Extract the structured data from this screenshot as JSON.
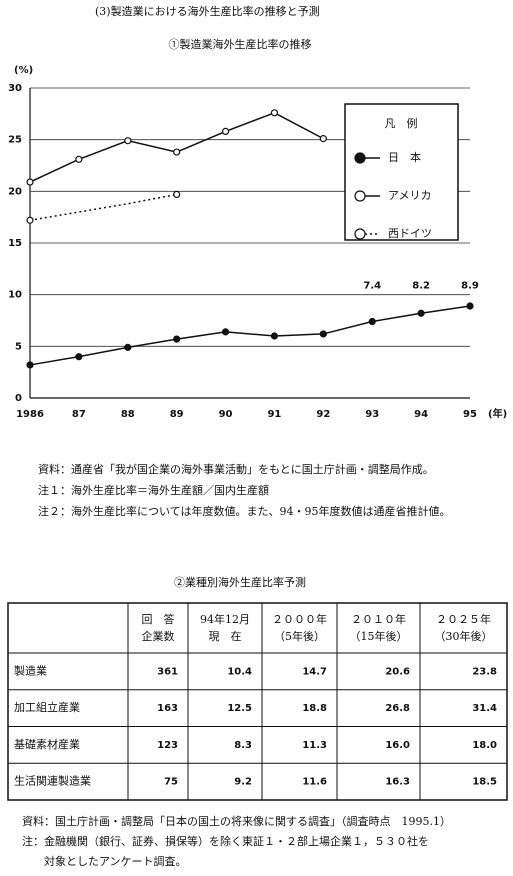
{
  "header": {
    "title": "(3)製造業における海外生産比率の推移と予測"
  },
  "chart_data": {
    "type": "line",
    "title": "①製造業海外生産比率の推移",
    "y_unit": "(%)",
    "x_unit": "(年)",
    "categories": [
      "1986",
      "87",
      "88",
      "89",
      "90",
      "91",
      "92",
      "93",
      "94",
      "95"
    ],
    "ylim": [
      0,
      30
    ],
    "yticks": [
      0,
      5,
      10,
      15,
      20,
      25,
      30
    ],
    "grid": true,
    "legend_title": "凡　例",
    "legend": "upper right",
    "series": [
      {
        "name": "日　本",
        "color": "#111111",
        "line_style": "solid",
        "marker_fill": true,
        "values": [
          3.2,
          4.0,
          4.9,
          5.7,
          6.4,
          6.0,
          6.2,
          7.4,
          8.2,
          8.9
        ],
        "value_labels": [
          null,
          null,
          null,
          null,
          null,
          null,
          null,
          "7.4",
          "8.2",
          "8.9"
        ]
      },
      {
        "name": "アメリカ",
        "color": "#111111",
        "line_style": "solid",
        "marker_fill": false,
        "values": [
          20.9,
          23.1,
          24.9,
          23.8,
          25.8,
          27.6,
          25.1,
          null,
          null,
          null
        ]
      },
      {
        "name": "西ドイツ",
        "color": "#111111",
        "line_style": "dotted",
        "marker_fill": false,
        "values": [
          17.2,
          18.0,
          18.8,
          19.7,
          null,
          null,
          null,
          null,
          null,
          null
        ]
      }
    ]
  },
  "notes": [
    "資料：通産省「我が国企業の海外事業活動」をもとに国土庁計画・調整局作成。",
    "注１：海外生産比率＝海外生産額／国内生産額",
    "注２：海外生産比率については年度数値。また、94・95年度数値は通産省推計値。"
  ],
  "table": {
    "title": "②業種別海外生産比率予測",
    "columns": [
      [
        "回　答",
        "企業数"
      ],
      [
        "94年12月",
        "現　在"
      ],
      [
        "２０００年",
        "（5年後）"
      ],
      [
        "２０１０年",
        "（15年後）"
      ],
      [
        "２０２５年",
        "（30年後）"
      ]
    ],
    "rows": [
      [
        "製造業",
        "361",
        "10.4",
        "14.7",
        "20.6",
        "23.8"
      ],
      [
        "加工組立産業",
        "163",
        "12.5",
        "18.8",
        "26.8",
        "31.4"
      ],
      [
        "基礎素材産業",
        "123",
        "8.3",
        "11.3",
        "16.0",
        "18.0"
      ],
      [
        "生活関連製造業",
        "75",
        "9.2",
        "11.6",
        "16.3",
        "18.5"
      ]
    ]
  },
  "footer": [
    "資料：国土庁計画・調整局「日本の国土の将来像に関する調査」（調査時点　1995.1）",
    "注：金融機関（銀行、証券、損保等）を除く東証１・２部上場企業１，５３０社を",
    "　　対象としたアンケート調査。"
  ]
}
